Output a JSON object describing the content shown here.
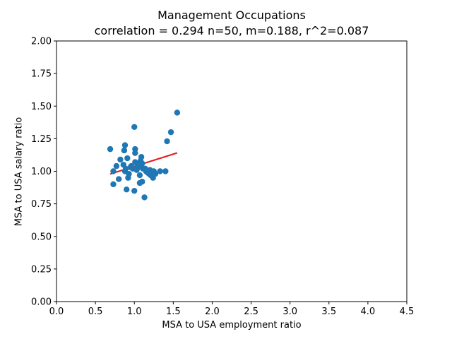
{
  "chart_data": {
    "type": "scatter",
    "title": "Management Occupations",
    "subtitle": "correlation = 0.294 n=50, m=0.188, r^2=0.087",
    "xlabel": "MSA to USA employment ratio",
    "ylabel": "MSA to USA salary ratio",
    "xlim": [
      0.0,
      4.5
    ],
    "ylim": [
      0.0,
      2.0
    ],
    "x_ticks": [
      "0.0",
      "0.5",
      "1.0",
      "1.5",
      "2.0",
      "2.5",
      "3.0",
      "3.5",
      "4.0",
      "4.5"
    ],
    "y_ticks": [
      "0.00",
      "0.25",
      "0.50",
      "0.75",
      "1.00",
      "1.25",
      "1.50",
      "1.75",
      "2.00"
    ],
    "grid": false,
    "colors": {
      "points": "#1f77b4",
      "fit_line": "#e41a1c"
    },
    "series": [
      {
        "x": [
          0.69,
          0.73,
          0.73,
          0.77,
          0.8,
          0.82,
          0.86,
          0.87,
          0.88,
          0.88,
          0.89,
          0.9,
          0.91,
          0.92,
          0.93,
          0.95,
          0.96,
          0.98,
          1.0,
          1.0,
          1.01,
          1.01,
          1.01,
          1.03,
          1.04,
          1.05,
          1.07,
          1.07,
          1.08,
          1.09,
          1.09,
          1.1,
          1.1,
          1.11,
          1.13,
          1.14,
          1.15,
          1.17,
          1.19,
          1.2,
          1.21,
          1.22,
          1.24,
          1.25,
          1.27,
          1.33,
          1.4,
          1.42,
          1.47,
          1.55
        ],
        "y": [
          1.17,
          1.0,
          0.9,
          1.04,
          0.94,
          1.09,
          1.05,
          1.16,
          1.2,
          1.0,
          1.02,
          0.86,
          1.1,
          0.95,
          0.98,
          1.03,
          1.04,
          1.02,
          1.34,
          0.85,
          1.17,
          1.14,
          1.07,
          1.01,
          1.05,
          1.03,
          0.97,
          0.91,
          1.08,
          1.11,
          1.04,
          1.06,
          0.92,
          1.02,
          0.8,
          1.02,
          1.0,
          0.99,
          0.98,
          1.01,
          0.97,
          0.99,
          0.95,
          1.0,
          0.98,
          1.0,
          1.0,
          1.23,
          1.3,
          1.45
        ]
      }
    ],
    "fit_line": {
      "x": [
        0.69,
        1.55
      ],
      "y": [
        0.979,
        1.141
      ]
    }
  }
}
